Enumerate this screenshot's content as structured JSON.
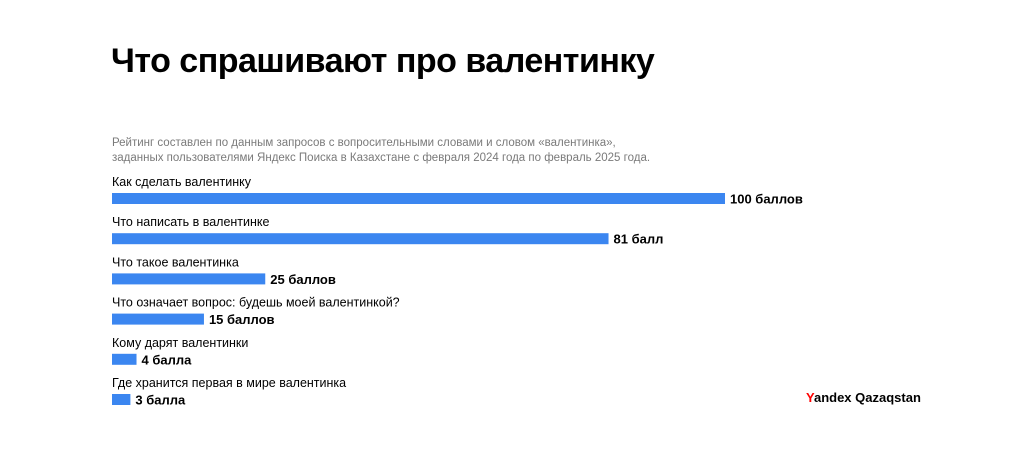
{
  "title": "Что спрашивают про валентинку",
  "subtitle": {
    "line1": "Рейтинг составлен по данным запросов с вопросительными словами и словом «валентинка»,",
    "line2": "заданных пользователями Яндекс Поиска в Казахстане с февраля 2024 года по февраль 2025 года."
  },
  "brand": {
    "first_letter": "Y",
    "rest": "andex Qazaqstan",
    "first_letter_color": "#ff0000"
  },
  "colors": {
    "bar": "#3b86f0",
    "text": "#000000",
    "muted": "#7a7a7a"
  },
  "chart_data": {
    "type": "bar",
    "orientation": "horizontal",
    "categories": [
      "Как сделать валентинку",
      "Что написать в валентинке",
      "Что такое валентинка",
      "Что означает вопрос: будешь моей валентинкой?",
      "Кому дарят валентинки",
      "Где хранится первая в мире валентинка"
    ],
    "values": [
      100,
      81,
      25,
      15,
      4,
      3
    ],
    "value_labels": [
      "100 баллов",
      "81 балл",
      "25 баллов",
      "15 баллов",
      "4 балла",
      "3 балла"
    ],
    "xlim": [
      0,
      100
    ],
    "grid": false,
    "legend": "none"
  }
}
